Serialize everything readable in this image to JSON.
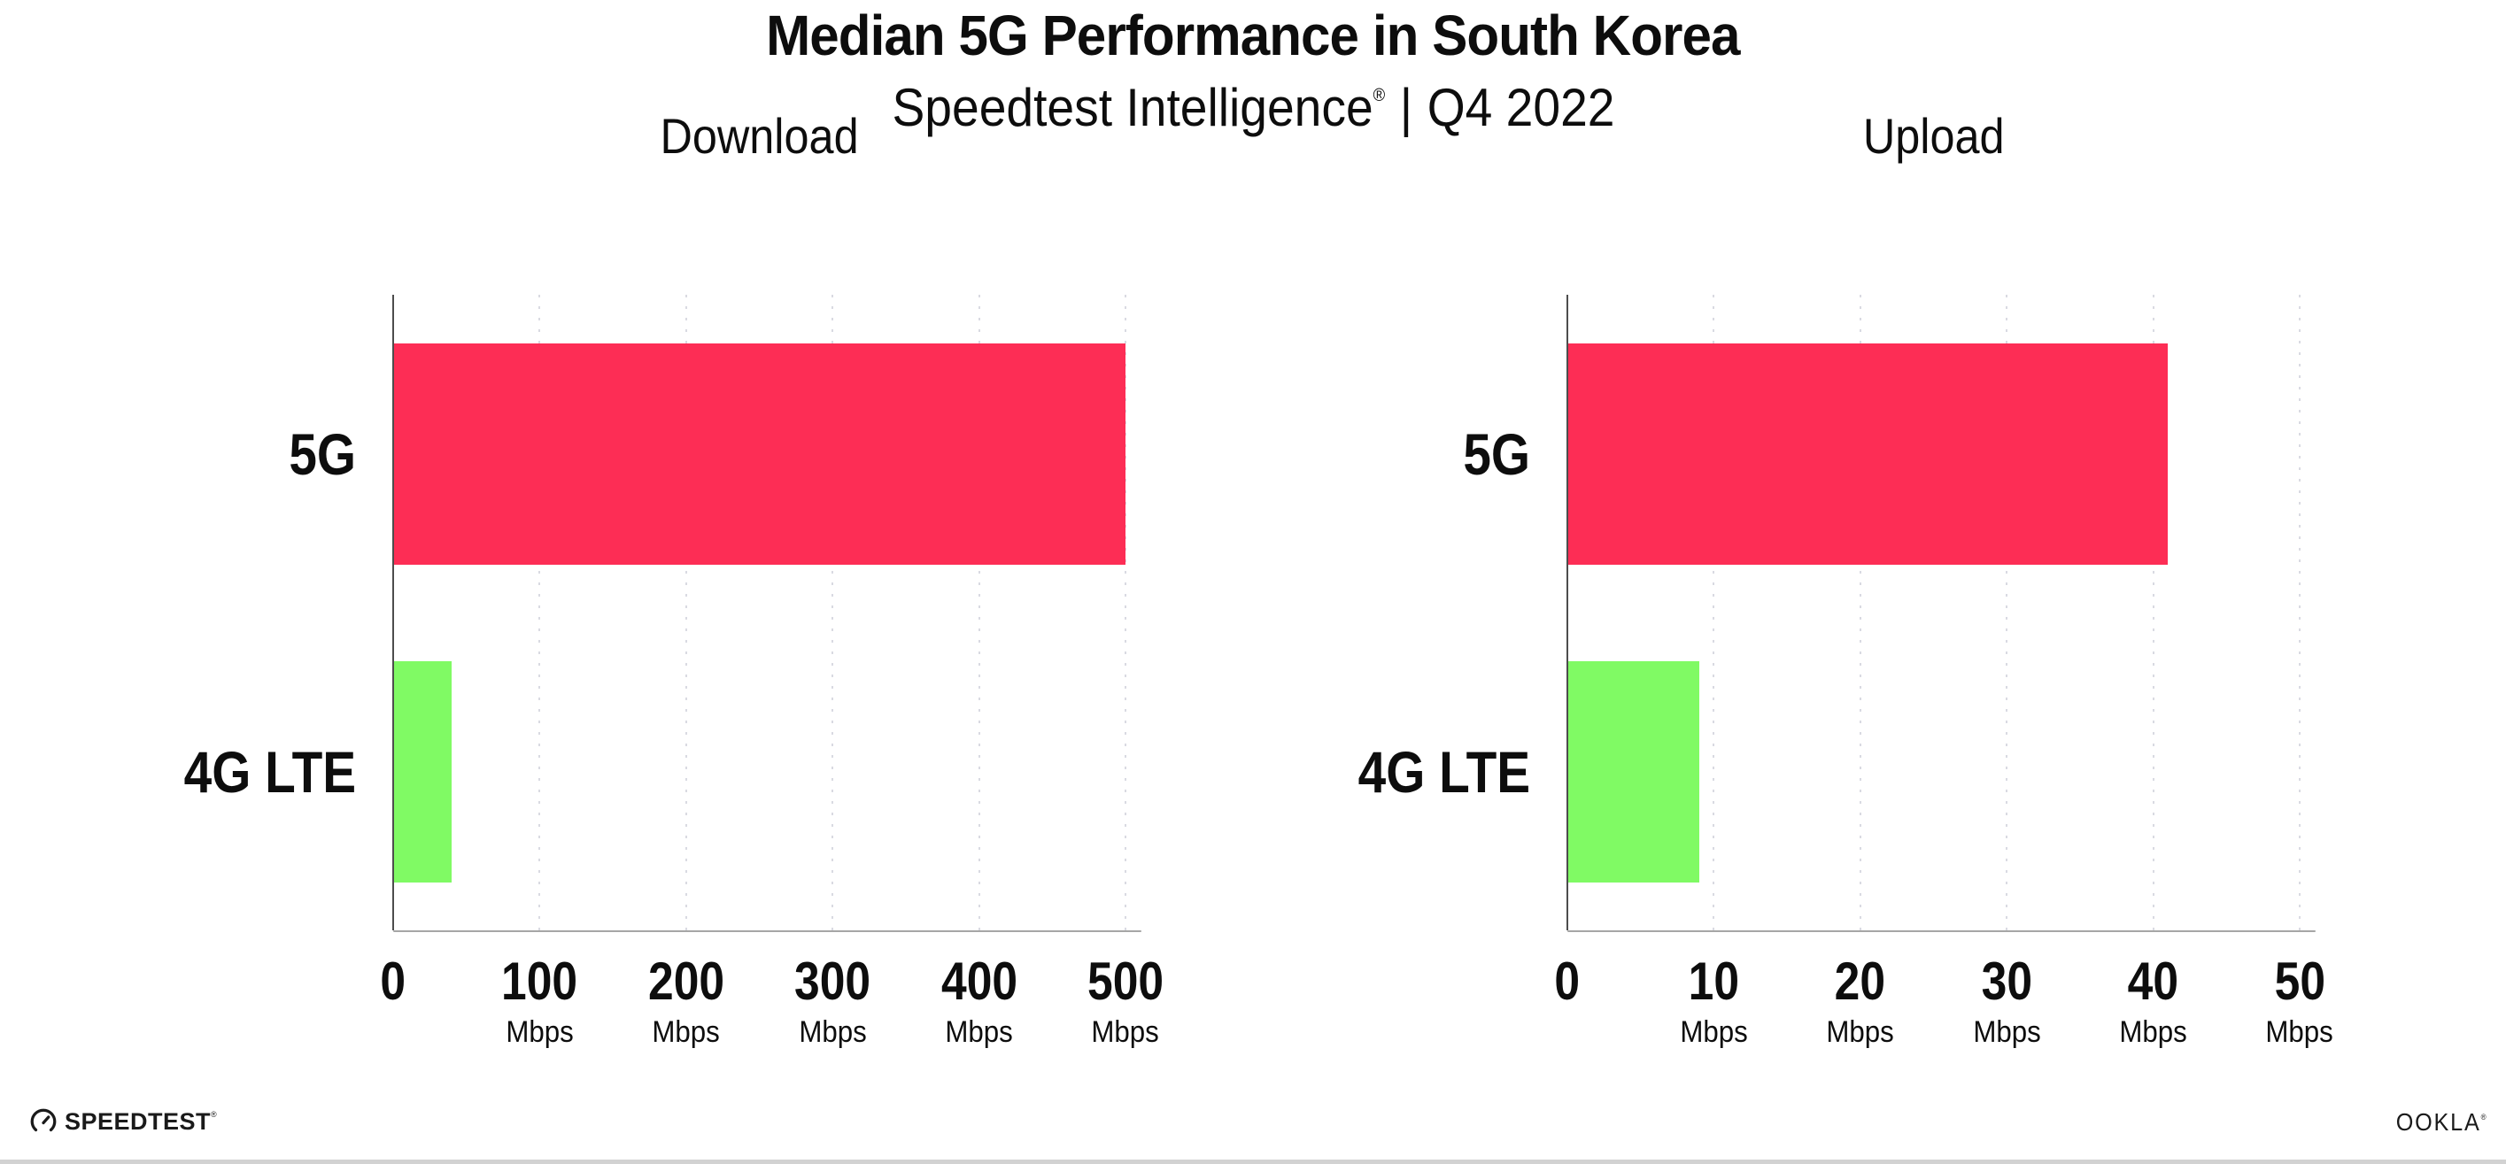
{
  "header": {
    "title": "Median 5G Performance in South Korea",
    "subtitle_brand": "Speedtest Intelligence",
    "subtitle_reg": "®",
    "subtitle_separator": "|",
    "subtitle_period": "Q4 2022"
  },
  "chart_data": [
    {
      "type": "bar",
      "orientation": "horizontal",
      "title": "Download",
      "categories": [
        "5G",
        "4G LTE"
      ],
      "values": [
        500,
        40
      ],
      "unit": "Mbps",
      "xlim": [
        0,
        500
      ],
      "xticks": [
        0,
        100,
        200,
        300,
        400,
        500
      ],
      "xtick_unit": "Mbps",
      "bar_colors": [
        "#FD2D55",
        "#80FA64"
      ],
      "grid": "vertical-dotted",
      "legend": "none"
    },
    {
      "type": "bar",
      "orientation": "horizontal",
      "title": "Upload",
      "categories": [
        "5G",
        "4G LTE"
      ],
      "values": [
        41,
        9
      ],
      "unit": "Mbps",
      "xlim": [
        0,
        50
      ],
      "xticks": [
        0,
        10,
        20,
        30,
        40,
        50
      ],
      "xtick_unit": "Mbps",
      "bar_colors": [
        "#FD2D55",
        "#80FA64"
      ],
      "grid": "vertical-dotted",
      "legend": "none"
    }
  ],
  "colors": {
    "bar_5g": "#FD2D55",
    "bar_4g_lte": "#80FA64",
    "axis_y": "#4d4d4d",
    "axis_x": "#a6a6a6",
    "grid_dots": "#d9dae2",
    "text": "#0d0d0d",
    "bottom_rule": "#d2d2d2"
  },
  "footer": {
    "speedtest_logo_text": "SPEEDTEST",
    "speedtest_reg": "®",
    "ookla_logo_text": "OOKLA",
    "ookla_reg": "®"
  }
}
